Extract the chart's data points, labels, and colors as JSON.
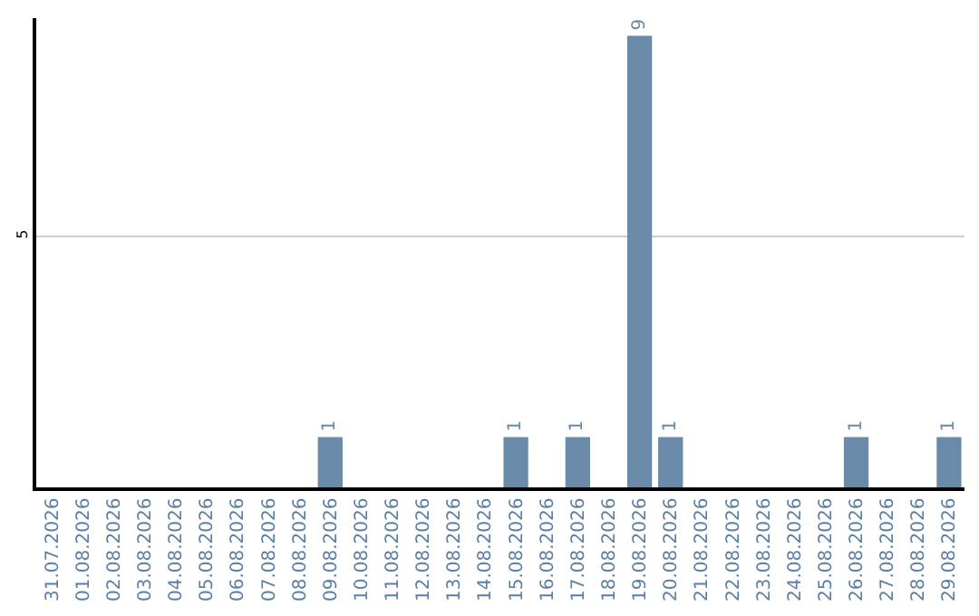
{
  "chart_data": {
    "type": "bar",
    "categories": [
      "31.07.2026",
      "01.08.2026",
      "02.08.2026",
      "03.08.2026",
      "04.08.2026",
      "05.08.2026",
      "06.08.2026",
      "07.08.2026",
      "08.08.2026",
      "09.08.2026",
      "10.08.2026",
      "11.08.2026",
      "12.08.2026",
      "13.08.2026",
      "14.08.2026",
      "15.08.2026",
      "16.08.2026",
      "17.08.2026",
      "18.08.2026",
      "19.08.2026",
      "20.08.2026",
      "21.08.2026",
      "22.08.2026",
      "23.08.2026",
      "24.08.2026",
      "25.08.2026",
      "26.08.2026",
      "27.08.2026",
      "28.08.2026",
      "29.08.2026"
    ],
    "values": [
      0,
      0,
      0,
      0,
      0,
      0,
      0,
      0,
      0,
      1,
      0,
      0,
      0,
      0,
      0,
      1,
      0,
      1,
      0,
      9,
      1,
      0,
      0,
      0,
      0,
      0,
      1,
      0,
      0,
      1
    ],
    "value_labels": [
      null,
      null,
      null,
      null,
      null,
      null,
      null,
      null,
      null,
      "1",
      null,
      null,
      null,
      null,
      null,
      "1",
      null,
      "1",
      null,
      "9",
      "1",
      null,
      null,
      null,
      null,
      null,
      "1",
      null,
      null,
      "1"
    ],
    "color": "#6a8aaa",
    "ylim": [
      0,
      9.35
    ],
    "yticks": [
      5
    ],
    "grid": "y",
    "legend": false
  }
}
